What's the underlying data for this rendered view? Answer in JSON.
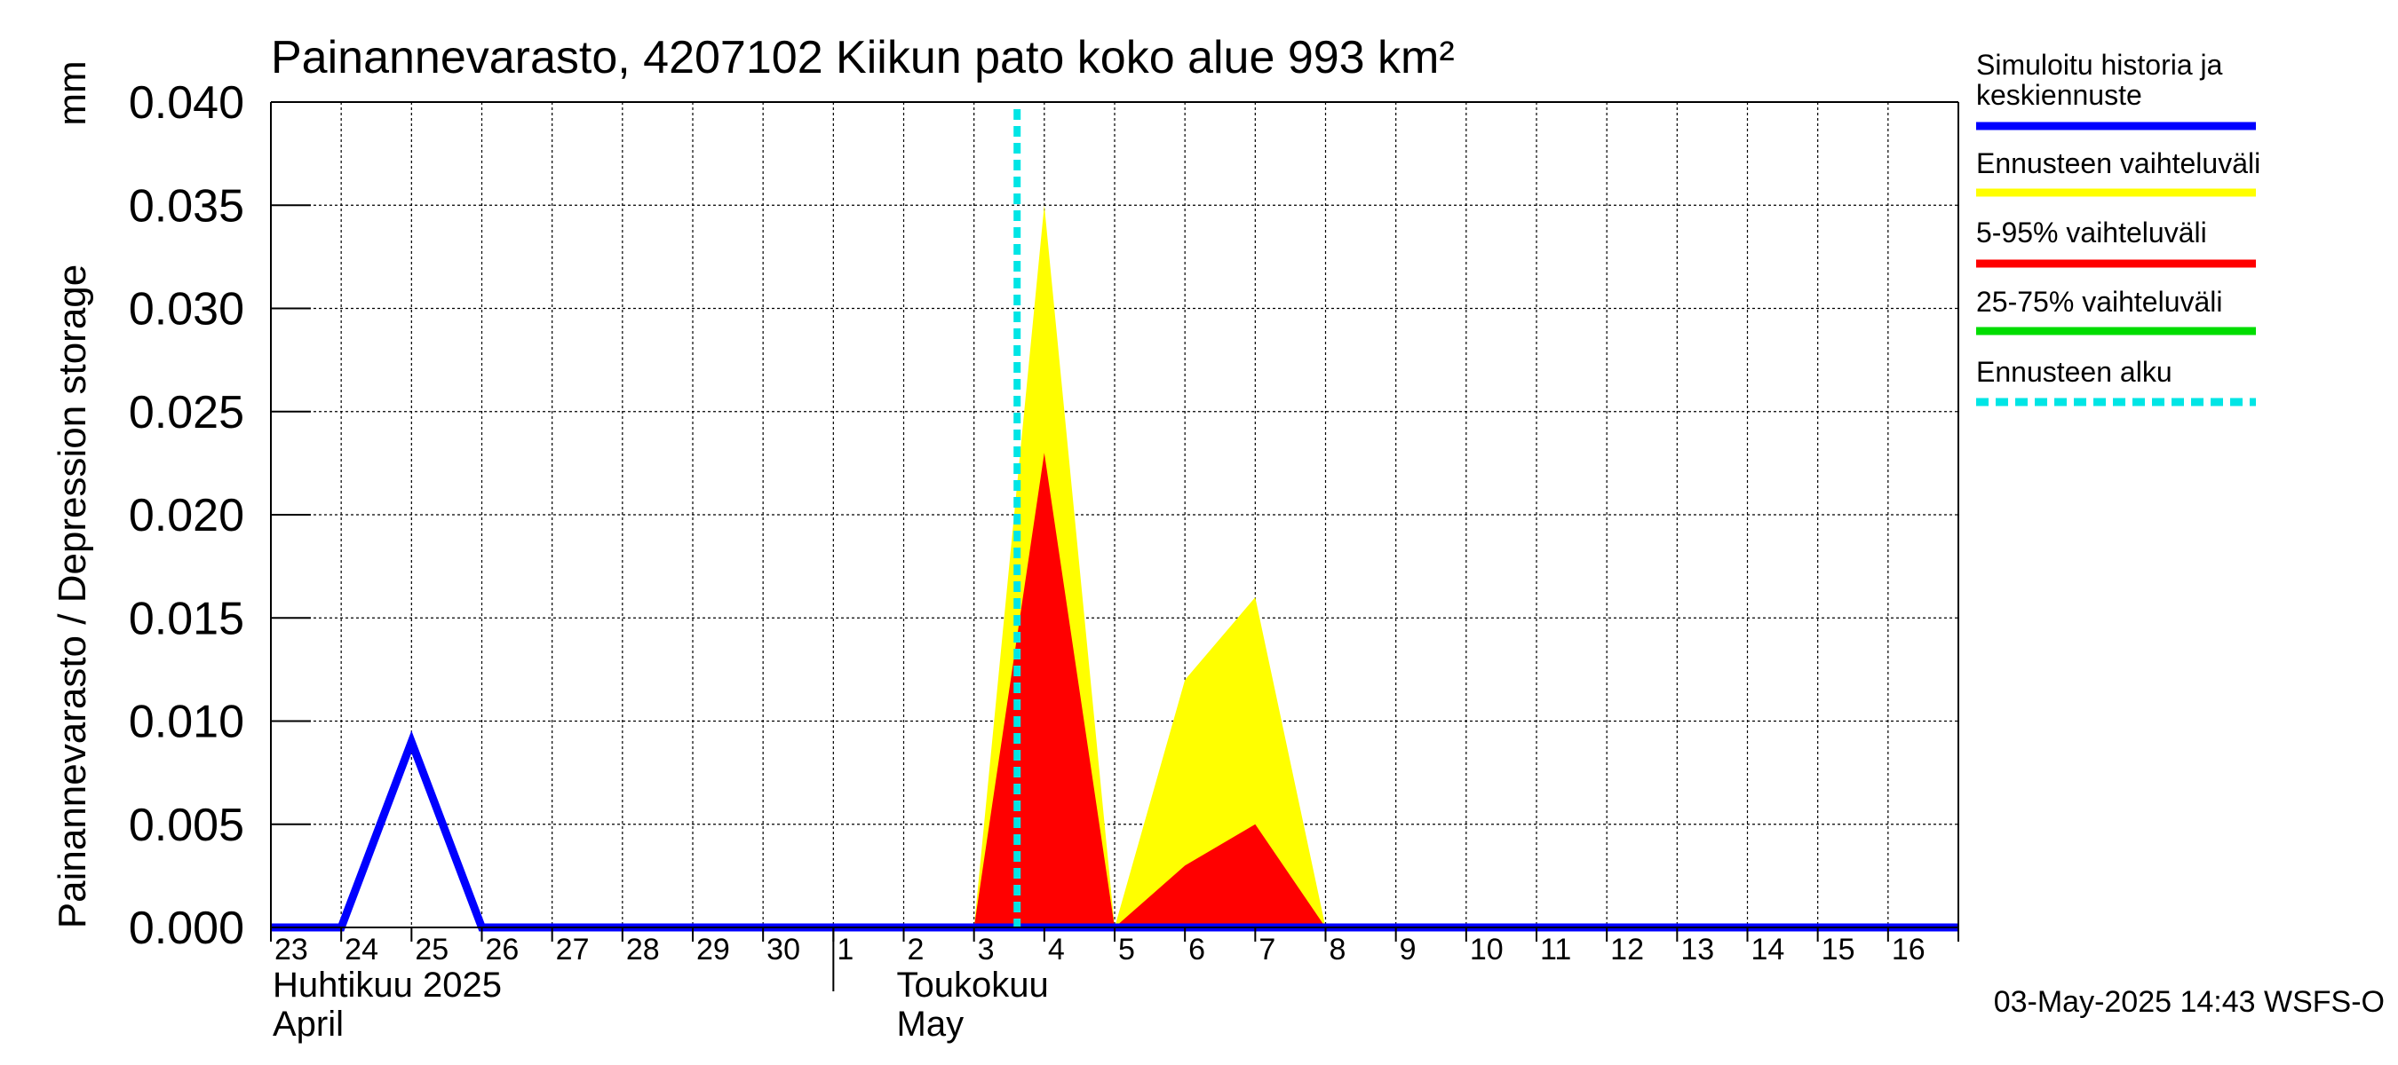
{
  "chart_data": {
    "type": "area",
    "title": "Painannevarasto, 4207102 Kiikun pato koko alue 993 km²",
    "ylabel": "Painannevarasto / Depression storage",
    "yunit": "mm",
    "ylim": [
      0,
      0.04
    ],
    "yticks": [
      "0.000",
      "0.005",
      "0.010",
      "0.015",
      "0.020",
      "0.025",
      "0.030",
      "0.035",
      "0.040"
    ],
    "xlim": [
      "2025-04-23",
      "2025-05-17"
    ],
    "xtick_labels": [
      "23",
      "24",
      "25",
      "26",
      "27",
      "28",
      "29",
      "30",
      "1",
      "2",
      "3",
      "4",
      "5",
      "6",
      "7",
      "8",
      "9",
      "10",
      "11",
      "12",
      "13",
      "14",
      "15",
      "16"
    ],
    "month_labels": [
      {
        "fi": "Huhtikuu  2025",
        "en": "April"
      },
      {
        "fi": "Toukokuu",
        "en": "May"
      }
    ],
    "forecast_start": "2025-05-03T14:43",
    "grid": true,
    "legend_position": "right",
    "series": [
      {
        "name": "Simuloitu historia ja keskiennuste",
        "color": "#0000ff",
        "kind": "line",
        "x": [
          "2025-04-23",
          "2025-04-24",
          "2025-04-25",
          "2025-04-26",
          "2025-05-17"
        ],
        "y": [
          0,
          0,
          0.009,
          0,
          0
        ]
      },
      {
        "name": "Ennusteen vaihteluväli",
        "color": "#ffff00",
        "kind": "band",
        "x": [
          "2025-05-03",
          "2025-05-04",
          "2025-05-05",
          "2025-05-06",
          "2025-05-07",
          "2025-05-08"
        ],
        "y": [
          0,
          0.035,
          0,
          0.012,
          0.016,
          0
        ]
      },
      {
        "name": "5-95% vaihteluväli",
        "color": "#ff0000",
        "kind": "band",
        "x": [
          "2025-05-03",
          "2025-05-04",
          "2025-05-05",
          "2025-05-06",
          "2025-05-07",
          "2025-05-08"
        ],
        "y": [
          0,
          0.023,
          0,
          0.003,
          0.005,
          0
        ]
      },
      {
        "name": "25-75% vaihteluväli",
        "color": "#00dd00",
        "kind": "band",
        "x": [],
        "y": []
      }
    ],
    "legend": [
      {
        "label": "Simuloitu historia ja keskiennuste",
        "color": "#0000ff",
        "style": "solid"
      },
      {
        "label": "Ennusteen vaihteluväli",
        "color": "#ffff00",
        "style": "solid"
      },
      {
        "label": "5-95% vaihteluväli",
        "color": "#ff0000",
        "style": "solid"
      },
      {
        "label": "25-75% vaihteluväli",
        "color": "#00dd00",
        "style": "solid"
      },
      {
        "label": "Ennusteen alku",
        "color": "#00e5e5",
        "style": "dashed"
      }
    ],
    "footer": "03-May-2025 14:43 WSFS-O"
  }
}
